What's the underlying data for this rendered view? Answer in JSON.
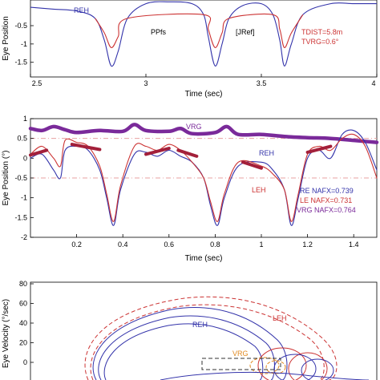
{
  "colors": {
    "REH": "#3333aa",
    "LEH": "#cc3333",
    "VRG": "#7a2a9a",
    "VRG_orange": "#e08a22",
    "dashdot": "#e8a0a0",
    "box": "#333333"
  },
  "chart_data": [
    {
      "type": "line",
      "xlabel": "Time (sec)",
      "ylabel": "Eye Position",
      "xlim": [
        2.5,
        4
      ],
      "ylim": [
        -1.9,
        0.2
      ],
      "xticks": [
        "2.5",
        "3",
        "3.5",
        "4"
      ],
      "yticks": [
        "-0.5",
        "-1",
        "-1.5"
      ],
      "yticks_values": [
        -0.5,
        -1,
        -1.5
      ],
      "series": [
        {
          "name": "REH",
          "x": [
            2.5,
            2.6,
            2.7,
            2.78,
            2.82,
            2.85,
            2.88,
            2.92,
            3.0,
            3.1,
            3.2,
            3.25,
            3.27,
            3.3,
            3.33,
            3.36,
            3.42,
            3.5,
            3.55,
            3.58,
            3.6,
            3.63,
            3.68,
            3.8,
            3.9,
            4.0
          ],
          "y": [
            0.0,
            -0.05,
            -0.1,
            -0.3,
            -0.9,
            -1.6,
            -1.2,
            -0.3,
            0.1,
            0.15,
            0.1,
            -0.2,
            -0.8,
            -1.6,
            -1.0,
            -0.3,
            0.05,
            0.1,
            -0.2,
            -0.9,
            -1.6,
            -1.0,
            -0.2,
            0.1,
            0.1,
            0.1
          ]
        },
        {
          "name": "LEH",
          "x": [
            2.78,
            2.82,
            2.85,
            2.88,
            2.92,
            3.25,
            3.27,
            3.3,
            3.33,
            3.36,
            3.55,
            3.58,
            3.6,
            3.63,
            3.68
          ],
          "y": [
            -0.3,
            -0.7,
            -1.1,
            -0.8,
            -0.3,
            -0.2,
            -0.6,
            -1.1,
            -0.7,
            -0.3,
            -0.2,
            -0.6,
            -1.1,
            -0.7,
            -0.2
          ]
        }
      ],
      "annotations": {
        "reh": "REH",
        "ppfs": "PPfs",
        "jref": "[JRef]",
        "tdist": "TDIST=5.8m",
        "tvrg": "TVRG=0.6°"
      }
    },
    {
      "type": "line",
      "xlabel": "Time (sec)",
      "ylabel": "Eye Position (°)",
      "xlim": [
        0,
        1.5
      ],
      "ylim": [
        -2,
        1
      ],
      "xticks": [
        "0.2",
        "0.4",
        "0.6",
        "0.8",
        "1",
        "1.2",
        "1.4"
      ],
      "xticks_values": [
        0.2,
        0.4,
        0.6,
        0.8,
        1.0,
        1.2,
        1.4
      ],
      "yticks": [
        "1",
        "0.5",
        "0",
        "-0.5",
        "-1",
        "-1.5",
        "-2"
      ],
      "yticks_values": [
        1,
        0.5,
        0,
        -0.5,
        -1,
        -1.5,
        -2
      ],
      "reference_lines": [
        0.5,
        -0.5
      ],
      "series": [
        {
          "name": "VRG",
          "x": [
            0.0,
            0.05,
            0.1,
            0.15,
            0.2,
            0.3,
            0.4,
            0.45,
            0.5,
            0.6,
            0.65,
            0.7,
            0.8,
            0.85,
            0.9,
            1.0,
            1.1,
            1.2,
            1.3,
            1.4,
            1.5
          ],
          "y": [
            0.75,
            0.7,
            0.8,
            0.72,
            0.65,
            0.7,
            0.68,
            0.85,
            0.7,
            0.68,
            0.75,
            0.62,
            0.65,
            0.8,
            0.6,
            0.6,
            0.55,
            0.52,
            0.5,
            0.45,
            0.4
          ]
        },
        {
          "name": "REH",
          "x": [
            0.0,
            0.05,
            0.1,
            0.13,
            0.15,
            0.2,
            0.25,
            0.3,
            0.33,
            0.36,
            0.39,
            0.45,
            0.5,
            0.55,
            0.6,
            0.65,
            0.7,
            0.75,
            0.78,
            0.81,
            0.84,
            0.9,
            1.0,
            1.05,
            1.1,
            1.13,
            1.16,
            1.2,
            1.25,
            1.3,
            1.35,
            1.4,
            1.45,
            1.5
          ],
          "y": [
            0.0,
            0.1,
            -0.3,
            -0.5,
            0.2,
            0.3,
            0.2,
            -0.3,
            -1.0,
            -1.7,
            -0.8,
            0.1,
            0.15,
            0.05,
            0.2,
            0.05,
            -0.1,
            -0.5,
            -1.2,
            -1.7,
            -1.0,
            -0.2,
            -0.1,
            -0.3,
            -0.8,
            -1.7,
            -1.0,
            0.0,
            0.2,
            0.0,
            0.6,
            0.7,
            0.4,
            -0.3
          ]
        },
        {
          "name": "LEH",
          "x": [
            0.0,
            0.05,
            0.1,
            0.13,
            0.15,
            0.2,
            0.25,
            0.3,
            0.33,
            0.36,
            0.39,
            0.45,
            0.5,
            0.55,
            0.6,
            0.65,
            0.7,
            0.75,
            0.78,
            0.81,
            0.84,
            0.9,
            1.0,
            1.05,
            1.1,
            1.13,
            1.16,
            1.2,
            1.25,
            1.3,
            1.35,
            1.4,
            1.45,
            1.5
          ],
          "y": [
            0.1,
            0.3,
            0.0,
            -0.2,
            0.45,
            0.4,
            0.3,
            -0.2,
            -0.9,
            -1.6,
            -0.7,
            0.3,
            0.3,
            0.2,
            0.35,
            0.2,
            -0.1,
            -0.5,
            -1.1,
            -1.6,
            -0.9,
            -0.1,
            -0.2,
            -0.4,
            -0.8,
            -1.6,
            -0.9,
            0.1,
            0.3,
            0.2,
            0.5,
            0.6,
            0.3,
            -0.5
          ]
        }
      ],
      "highlight_segments": [
        {
          "x": [
            0.0,
            0.07
          ],
          "y": [
            0.08,
            0.2
          ]
        },
        {
          "x": [
            0.18,
            0.3
          ],
          "y": [
            0.35,
            0.22
          ]
        },
        {
          "x": [
            0.5,
            0.6
          ],
          "y": [
            0.1,
            0.25
          ]
        },
        {
          "x": [
            0.64,
            0.72
          ],
          "y": [
            0.2,
            0.05
          ]
        },
        {
          "x": [
            0.92,
            1.0
          ],
          "y": [
            -0.1,
            -0.25
          ]
        },
        {
          "x": [
            1.2,
            1.3
          ],
          "y": [
            0.15,
            0.3
          ]
        }
      ],
      "annotations": {
        "vrg": "VRG",
        "reh": "REH",
        "leh": "LEH",
        "re_nafx": "RE NAFX=0.739",
        "le_nafx": "LE NAFX=0.731",
        "vrg_nafx": "VRG NAFX=0.764"
      }
    },
    {
      "type": "line",
      "xlabel": "",
      "ylabel": "Eye Velocity (°/sec)",
      "ylim": [
        -10,
        80
      ],
      "yticks": [
        "80",
        "60",
        "40",
        "20",
        "0"
      ],
      "yticks_values": [
        80,
        60,
        40,
        20,
        0
      ],
      "annotations": {
        "reh": "REH",
        "leh": "LEH",
        "vrg": "VRG"
      }
    }
  ]
}
